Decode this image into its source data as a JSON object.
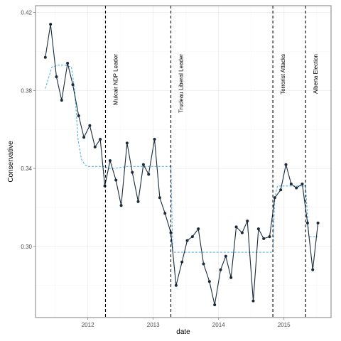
{
  "chart_data": {
    "type": "line",
    "xlabel": "date",
    "ylabel": "Conservative",
    "xlim": [
      2011.2,
      2015.72
    ],
    "ylim": [
      0.2635,
      0.4235
    ],
    "x_ticks": [
      {
        "value": 2012,
        "label": "2012"
      },
      {
        "value": 2013,
        "label": "2013"
      },
      {
        "value": 2014,
        "label": "2014"
      },
      {
        "value": 2015,
        "label": "2015"
      }
    ],
    "y_ticks": [
      {
        "value": 0.3,
        "label": "0.30"
      },
      {
        "value": 0.34,
        "label": "0.34"
      },
      {
        "value": 0.38,
        "label": "0.38"
      },
      {
        "value": 0.42,
        "label": "0.42"
      }
    ],
    "grid": true,
    "colors": {
      "observed": "#1a2a3a",
      "smoothed": "#56b4e9",
      "event": "#000000"
    },
    "series": [
      {
        "style": "solid-line-with-points",
        "x": [
          2011.35,
          2011.43,
          2011.52,
          2011.6,
          2011.69,
          2011.77,
          2011.86,
          2011.94,
          2012.03,
          2012.11,
          2012.19,
          2012.26,
          2012.34,
          2012.43,
          2012.51,
          2012.6,
          2012.68,
          2012.77,
          2012.85,
          2012.93,
          2013.02,
          2013.1,
          2013.18,
          2013.27,
          2013.35,
          2013.44,
          2013.52,
          2013.6,
          2013.69,
          2013.77,
          2013.86,
          2013.94,
          2014.03,
          2014.11,
          2014.19,
          2014.27,
          2014.36,
          2014.44,
          2014.53,
          2014.61,
          2014.69,
          2014.78,
          2014.86,
          2014.95,
          2015.03,
          2015.11,
          2015.19,
          2015.28,
          2015.36,
          2015.44,
          2015.52
        ],
        "y": [
          0.397,
          0.414,
          0.387,
          0.375,
          0.394,
          0.383,
          0.367,
          0.356,
          0.362,
          0.351,
          0.355,
          0.331,
          0.344,
          0.334,
          0.321,
          0.353,
          0.338,
          0.323,
          0.342,
          0.337,
          0.355,
          0.325,
          0.317,
          0.307,
          0.28,
          0.292,
          0.303,
          0.305,
          0.309,
          0.291,
          0.282,
          0.27,
          0.288,
          0.295,
          0.284,
          0.31,
          0.307,
          0.313,
          0.272,
          0.309,
          0.304,
          0.305,
          0.325,
          0.329,
          0.342,
          0.332,
          0.33,
          0.332,
          0.312,
          0.288,
          0.312
        ]
      },
      {
        "style": "dotted-line",
        "x": [
          2011.35,
          2011.45,
          2011.55,
          2011.65,
          2011.75,
          2011.8,
          2011.85,
          2011.9,
          2011.95,
          2012.0,
          2012.1,
          2012.2,
          2012.27,
          2012.3,
          2012.4,
          2012.6,
          2012.8,
          2013.0,
          2013.1,
          2013.2,
          2013.27,
          2013.3,
          2013.4,
          2013.6,
          2013.8,
          2014.0,
          2014.2,
          2014.4,
          2014.6,
          2014.83,
          2014.86,
          2014.9,
          2015.0,
          2015.1,
          2015.2,
          2015.33,
          2015.38,
          2015.44,
          2015.52
        ],
        "y": [
          0.381,
          0.392,
          0.393,
          0.393,
          0.392,
          0.38,
          0.355,
          0.345,
          0.342,
          0.341,
          0.341,
          0.341,
          0.341,
          0.34,
          0.34,
          0.341,
          0.341,
          0.341,
          0.341,
          0.341,
          0.341,
          0.297,
          0.297,
          0.297,
          0.297,
          0.297,
          0.297,
          0.297,
          0.297,
          0.297,
          0.325,
          0.331,
          0.331,
          0.331,
          0.331,
          0.331,
          0.305,
          0.305,
          0.305
        ]
      }
    ],
    "events": [
      {
        "x": 2012.27,
        "label": "Mulcair NDP Leader"
      },
      {
        "x": 2013.27,
        "label": "Trudeau Liberal Leader"
      },
      {
        "x": 2014.83,
        "label": "Terrorist Attacks"
      },
      {
        "x": 2015.33,
        "label": "Alberta Election"
      }
    ]
  }
}
